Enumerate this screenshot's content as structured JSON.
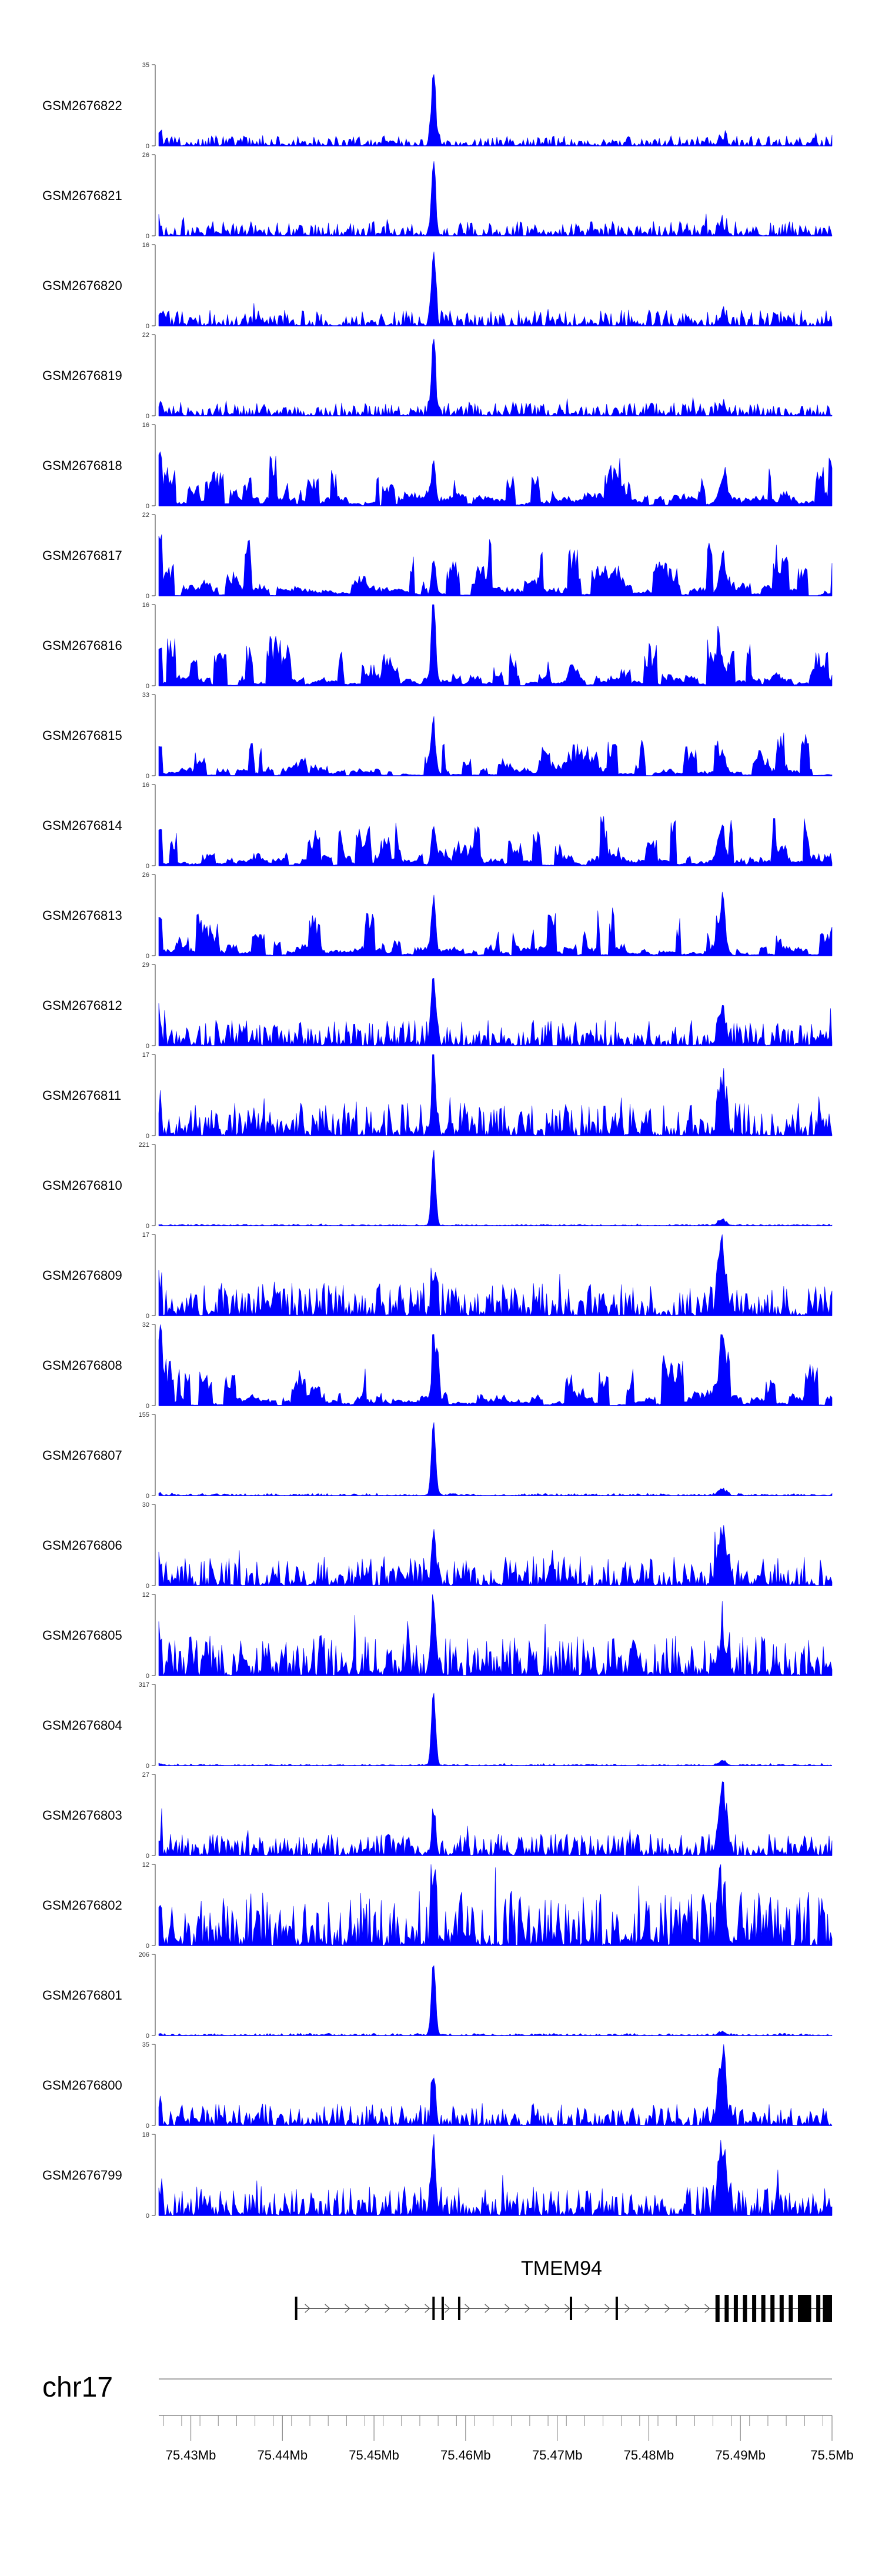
{
  "chart_data": {
    "type": "area",
    "chromosome": "chr17",
    "xlim": [
      75.4265,
      75.5
    ],
    "x_ticks": [
      "75.43Mb",
      "75.44Mb",
      "75.45Mb",
      "75.46Mb",
      "75.47Mb",
      "75.48Mb",
      "75.49Mb",
      "75.5Mb"
    ],
    "x_tick_values": [
      75.43,
      75.44,
      75.45,
      75.46,
      75.47,
      75.48,
      75.49,
      75.5
    ],
    "series_color": "#0000ff",
    "tracks": [
      {
        "name": "GSM2676822",
        "ymax": "35",
        "peak": 1.0,
        "noise": 0.14,
        "p2": 0.1,
        "sparse": false
      },
      {
        "name": "GSM2676821",
        "ymax": "26",
        "peak": 0.95,
        "noise": 0.2,
        "p2": 0.12,
        "sparse": false
      },
      {
        "name": "GSM2676820",
        "ymax": "16",
        "peak": 0.95,
        "noise": 0.22,
        "p2": 0.15,
        "sparse": false
      },
      {
        "name": "GSM2676819",
        "ymax": "22",
        "peak": 0.95,
        "noise": 0.18,
        "p2": 0.12,
        "sparse": false
      },
      {
        "name": "GSM2676818",
        "ymax": "16",
        "peak": 0.55,
        "noise": 0.75,
        "p2": 0.4,
        "sparse": true
      },
      {
        "name": "GSM2676817",
        "ymax": "22",
        "peak": 0.5,
        "noise": 0.8,
        "p2": 0.4,
        "sparse": true
      },
      {
        "name": "GSM2676816",
        "ymax": "16",
        "peak": 0.95,
        "noise": 0.7,
        "p2": 0.4,
        "sparse": true
      },
      {
        "name": "GSM2676815",
        "ymax": "33",
        "peak": 0.6,
        "noise": 0.55,
        "p2": 0.3,
        "sparse": true
      },
      {
        "name": "GSM2676814",
        "ymax": "16",
        "peak": 0.55,
        "noise": 0.7,
        "p2": 0.45,
        "sparse": true
      },
      {
        "name": "GSM2676813",
        "ymax": "26",
        "peak": 0.6,
        "noise": 0.65,
        "p2": 0.4,
        "sparse": true
      },
      {
        "name": "GSM2676812",
        "ymax": "29",
        "peak": 0.95,
        "noise": 0.35,
        "p2": 0.45,
        "sparse": false
      },
      {
        "name": "GSM2676811",
        "ymax": "17",
        "peak": 0.95,
        "noise": 0.45,
        "p2": 0.75,
        "sparse": false
      },
      {
        "name": "GSM2676810",
        "ymax": "221",
        "peak": 1.0,
        "noise": 0.02,
        "p2": 0.1,
        "sparse": false
      },
      {
        "name": "GSM2676809",
        "ymax": "17",
        "peak": 0.5,
        "noise": 0.45,
        "p2": 0.95,
        "sparse": false
      },
      {
        "name": "GSM2676808",
        "ymax": "32",
        "peak": 0.45,
        "noise": 0.7,
        "p2": 0.4,
        "sparse": true
      },
      {
        "name": "GSM2676807",
        "ymax": "155",
        "peak": 1.0,
        "noise": 0.03,
        "p2": 0.1,
        "sparse": false
      },
      {
        "name": "GSM2676806",
        "ymax": "30",
        "peak": 0.55,
        "noise": 0.4,
        "p2": 0.95,
        "sparse": false
      },
      {
        "name": "GSM2676805",
        "ymax": "12",
        "peak": 0.95,
        "noise": 0.55,
        "p2": 0.55,
        "sparse": false
      },
      {
        "name": "GSM2676804",
        "ymax": "317",
        "peak": 1.0,
        "noise": 0.02,
        "p2": 0.08,
        "sparse": false
      },
      {
        "name": "GSM2676803",
        "ymax": "27",
        "peak": 0.45,
        "noise": 0.3,
        "p2": 0.95,
        "sparse": false
      },
      {
        "name": "GSM2676802",
        "ymax": "12",
        "peak": 0.95,
        "noise": 0.75,
        "p2": 0.55,
        "sparse": false
      },
      {
        "name": "GSM2676801",
        "ymax": "206",
        "peak": 1.0,
        "noise": 0.03,
        "p2": 0.05,
        "sparse": false
      },
      {
        "name": "GSM2676800",
        "ymax": "35",
        "peak": 0.6,
        "noise": 0.3,
        "p2": 0.95,
        "sparse": false
      },
      {
        "name": "GSM2676799",
        "ymax": "18",
        "peak": 0.95,
        "noise": 0.4,
        "p2": 0.95,
        "sparse": false
      }
    ],
    "main_peak_position": 75.4565,
    "second_peak_position": 75.488,
    "gene": {
      "name": "TMEM94",
      "start": 75.4415,
      "end": 75.5,
      "strand": "+",
      "exons": [
        75.4415,
        75.4565,
        75.4575,
        75.4593,
        75.4715,
        75.4765,
        75.4875,
        75.4885,
        75.4895,
        75.4905,
        75.4915,
        75.4925,
        75.4935,
        75.4945,
        75.4955,
        75.4965,
        75.4975,
        75.4985,
        75.4995
      ]
    }
  }
}
